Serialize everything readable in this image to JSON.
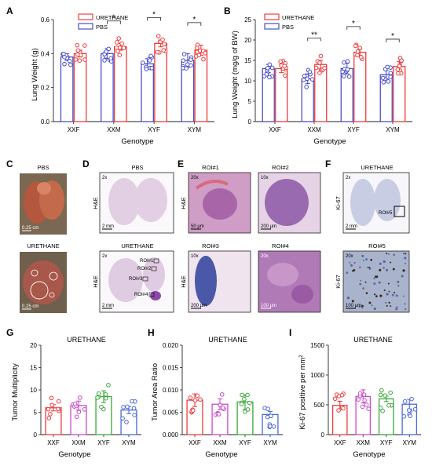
{
  "colors": {
    "urethane": "#ee3b3b",
    "pbs": "#4a4fc8",
    "xxf": "#ee3b3b",
    "xxm": "#c94ac9",
    "xyf": "#3aa63a",
    "xym": "#4a6ad8"
  },
  "panel_labels": {
    "a": "A",
    "b": "B",
    "c": "C",
    "d": "D",
    "e": "E",
    "f": "F",
    "g": "G",
    "h": "H",
    "i": "I"
  },
  "panels_images": {
    "c": {
      "pbs": "PBS",
      "urethane": "URETHANE",
      "scale": "0.25 cm"
    },
    "d": {
      "pbs": "PBS",
      "urethane": "URETHANE",
      "stain": "H&E",
      "mag": "2x",
      "scale": "2 mm",
      "rois": [
        "ROI#1",
        "ROI#2",
        "ROI#3",
        "ROI#4"
      ]
    },
    "e": {
      "roi1": "ROI#1",
      "roi2": "ROI#2",
      "roi3": "ROI#3",
      "roi4": "ROI#4",
      "mag1": "20x",
      "mag2": "10x",
      "mag3": "10x",
      "mag4": "20x",
      "stain": "H&E",
      "scale1": "50 µm",
      "scale2": "200 µm",
      "scale3": "200 µm",
      "scale4": "100 µm"
    },
    "f": {
      "title": "URETHANE",
      "stain": "Ki-67",
      "mag1": "2x",
      "mag2": "20x",
      "roi": "ROI#5",
      "scale1": "2 mm",
      "scale2": "100 µm",
      "roi5": "ROI#5"
    }
  },
  "chart_data": [
    {
      "id": "A",
      "type": "bar",
      "categories": [
        "XXF",
        "XXM",
        "XYF",
        "XYM"
      ],
      "series": [
        {
          "name": "PBS",
          "values": [
            0.38,
            0.4,
            0.34,
            0.36
          ],
          "sem": [
            0.02,
            0.03,
            0.03,
            0.04
          ]
        },
        {
          "name": "URETHANE",
          "values": [
            0.4,
            0.44,
            0.46,
            0.42
          ],
          "sem": [
            0.02,
            0.02,
            0.02,
            0.03
          ]
        }
      ],
      "significance": [
        "",
        "*",
        "*",
        "*"
      ],
      "xlabel": "Genotype",
      "ylabel": "Lung Weight (g)",
      "ylim": [
        0.0,
        0.6
      ],
      "yticks": [
        "0.0",
        "0.2",
        "0.4",
        "0.6"
      ],
      "legend": "top-left"
    },
    {
      "id": "B",
      "type": "bar",
      "categories": [
        "XXF",
        "XXM",
        "XYF",
        "XYM"
      ],
      "series": [
        {
          "name": "PBS",
          "values": [
            13,
            10.5,
            13,
            11.5
          ],
          "sem": [
            1.0,
            1.2,
            1.3,
            1.0
          ]
        },
        {
          "name": "URETHANE",
          "values": [
            13,
            14,
            17,
            13.5
          ],
          "sem": [
            1.0,
            1.0,
            0.8,
            1.2
          ]
        }
      ],
      "significance": [
        "",
        "**",
        "*",
        "*"
      ],
      "xlabel": "Genotype",
      "ylabel": "Lung Weight (mg/g of BW)",
      "ylim": [
        0,
        25
      ],
      "yticks": [
        "0",
        "5",
        "10",
        "15",
        "20",
        "25"
      ],
      "legend": "top-left"
    },
    {
      "id": "G",
      "type": "bar",
      "title": "URETHANE",
      "categories": [
        "XXF",
        "XXM",
        "XYF",
        "XYM"
      ],
      "values": [
        6.0,
        6.5,
        8.5,
        5.5
      ],
      "sem": [
        0.7,
        1.0,
        1.3,
        0.8
      ],
      "xlabel": "Genotype",
      "ylabel": "Tumor Multiplicity",
      "ylim": [
        0,
        20
      ],
      "yticks": [
        "0",
        "5",
        "10",
        "15",
        "20"
      ]
    },
    {
      "id": "H",
      "type": "bar",
      "title": "URETHANE",
      "categories": [
        "XXF",
        "XXM",
        "XYF",
        "XYM"
      ],
      "values": [
        0.0077,
        0.0068,
        0.0073,
        0.0045
      ],
      "sem": [
        0.0014,
        0.0012,
        0.0016,
        0.0007
      ],
      "xlabel": "Genotype",
      "ylabel": "Tumor Area Ratio",
      "ylim": [
        0,
        0.02
      ],
      "yticks": [
        "0.000",
        "0.005",
        "0.010",
        "0.015",
        "0.020"
      ]
    },
    {
      "id": "I",
      "type": "bar",
      "title": "URETHANE",
      "categories": [
        "XXF",
        "XXM",
        "XYF",
        "XYM"
      ],
      "values": [
        490,
        640,
        600,
        510
      ],
      "sem": [
        70,
        110,
        45,
        80
      ],
      "xlabel": "Genotype",
      "ylabel": "Ki-67 positive per mm",
      "ylabel_sup": "2",
      "ylim": [
        0,
        1500
      ],
      "yticks": [
        "0",
        "500",
        "1000",
        "1500"
      ]
    }
  ]
}
